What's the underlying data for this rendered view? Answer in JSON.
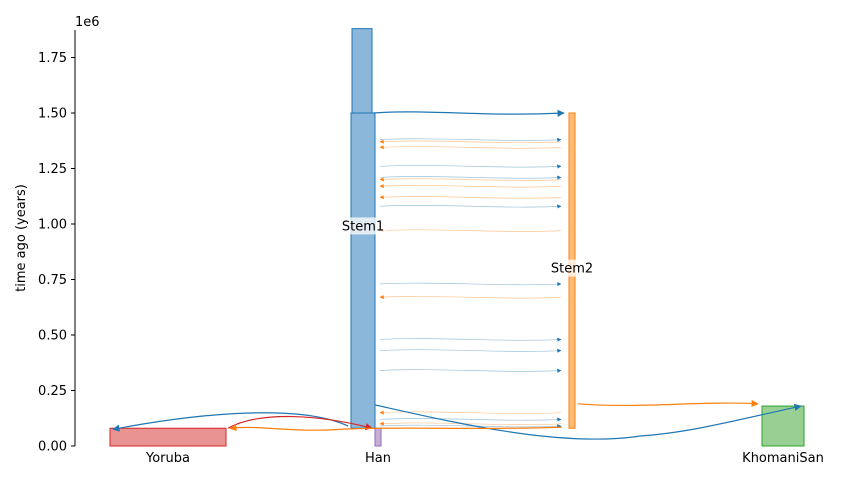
{
  "chart_data": {
    "type": "demography",
    "ylabel": "time ago (years)",
    "y_offset_text": "1e6",
    "ylim": [
      0,
      1.88
    ],
    "yticks": [
      "0.00",
      "0.25",
      "0.50",
      "0.75",
      "1.00",
      "1.25",
      "1.50",
      "1.75"
    ],
    "ytick_values": [
      0,
      0.25,
      0.5,
      0.75,
      1.0,
      1.25,
      1.5,
      1.75
    ],
    "demes": [
      {
        "name": "Yoruba",
        "label": "Yoruba",
        "start": 0.08,
        "end": 0,
        "color": "#e99393",
        "edge": "#d62728",
        "width": 116,
        "show_label": true
      },
      {
        "name": "Han",
        "label": "Han",
        "start": 0.08,
        "end": 0,
        "color": "#c5b0d5",
        "edge": "#9467bd",
        "width": 6,
        "show_label": true
      },
      {
        "name": "Stem1",
        "label": "Stem1",
        "start": 1.5,
        "end": 0.08,
        "color": "#8ab7da",
        "edge": "#1f77b4",
        "width": 24,
        "show_label": true
      },
      {
        "name": "Stem1-ancestral",
        "label": "",
        "start": 1.88,
        "end": 1.5,
        "color": "#8ab7da",
        "edge": "#1f77b4",
        "width": 20,
        "show_label": false
      },
      {
        "name": "Stem2",
        "label": "Stem2",
        "start": 1.5,
        "end": 0.08,
        "color": "#ffbb78",
        "edge": "#ff7f0e",
        "width": 6,
        "show_label": true
      },
      {
        "name": "KhomaniSan",
        "label": "KhomaniSan",
        "start": 0.18,
        "end": 0,
        "color": "#98d094",
        "edge": "#2ca02c",
        "width": 42,
        "show_label": true
      }
    ],
    "pulses": [
      {
        "from": "Stem1",
        "to": "Stem2",
        "time": 1.5,
        "color": "#1f77b4"
      },
      {
        "from": "Stem2",
        "to": "KhomaniSan",
        "time": 0.18,
        "color": "#ff7f0e"
      },
      {
        "from": "Stem1",
        "to": "Yoruba",
        "time": 0.08,
        "color": "#1f77b4"
      },
      {
        "from": "Stem1",
        "to": "KhomaniSan",
        "time": 0.18,
        "color": "#1f77b4"
      },
      {
        "from": "Yoruba",
        "to": "Han",
        "time": 0.08,
        "color": "#d62728"
      },
      {
        "from": "Stem2",
        "to": "Yoruba",
        "time": 0.08,
        "color": "#ff7f0e"
      }
    ],
    "migration_lines": [
      {
        "time": 1.38,
        "dir": "to-Stem2",
        "color": "#1f77b4"
      },
      {
        "time": 1.37,
        "dir": "to-Stem1",
        "color": "#ff7f0e"
      },
      {
        "time": 1.345,
        "dir": "to-Stem1",
        "color": "#ff7f0e"
      },
      {
        "time": 1.26,
        "dir": "to-Stem2",
        "color": "#1f77b4"
      },
      {
        "time": 1.21,
        "dir": "to-Stem2",
        "color": "#1f77b4"
      },
      {
        "time": 1.2,
        "dir": "to-Stem1",
        "color": "#ff7f0e"
      },
      {
        "time": 1.17,
        "dir": "to-Stem1",
        "color": "#ff7f0e"
      },
      {
        "time": 1.12,
        "dir": "to-Stem1",
        "color": "#ff7f0e"
      },
      {
        "time": 1.08,
        "dir": "to-Stem2",
        "color": "#1f77b4"
      },
      {
        "time": 0.97,
        "dir": "to-Stem1",
        "color": "#ff7f0e"
      },
      {
        "time": 0.73,
        "dir": "to-Stem2",
        "color": "#1f77b4"
      },
      {
        "time": 0.67,
        "dir": "to-Stem1",
        "color": "#ff7f0e"
      },
      {
        "time": 0.48,
        "dir": "to-Stem2",
        "color": "#1f77b4"
      },
      {
        "time": 0.43,
        "dir": "to-Stem2",
        "color": "#1f77b4"
      },
      {
        "time": 0.34,
        "dir": "to-Stem2",
        "color": "#1f77b4"
      },
      {
        "time": 0.15,
        "dir": "to-Stem1",
        "color": "#ff7f0e"
      },
      {
        "time": 0.12,
        "dir": "to-Stem2",
        "color": "#1f77b4"
      },
      {
        "time": 0.1,
        "dir": "to-Stem1",
        "color": "#ff7f0e"
      },
      {
        "time": 0.09,
        "dir": "to-Stem2",
        "color": "#1f77b4"
      }
    ],
    "grid": false
  }
}
